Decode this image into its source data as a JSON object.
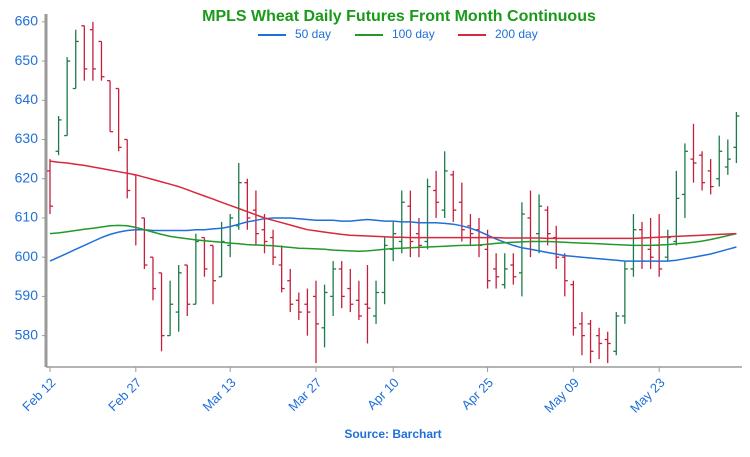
{
  "chart_data": {
    "type": "ohlc",
    "title": "MPLS Wheat Daily Futures Front Month Continuous",
    "source": "Source: Barchart",
    "categories": [
      "Feb 12",
      null,
      null,
      null,
      null,
      null,
      null,
      null,
      null,
      null,
      "Feb 27",
      null,
      null,
      null,
      null,
      null,
      null,
      null,
      null,
      null,
      null,
      "Mar 13",
      null,
      null,
      null,
      null,
      null,
      null,
      null,
      null,
      null,
      "Mar 27",
      null,
      null,
      null,
      null,
      null,
      null,
      null,
      null,
      "Apr 10",
      null,
      null,
      null,
      null,
      null,
      null,
      null,
      null,
      null,
      null,
      "Apr 25",
      null,
      null,
      null,
      null,
      null,
      null,
      null,
      null,
      null,
      "May 09",
      null,
      null,
      null,
      null,
      null,
      null,
      null,
      null,
      null,
      "May 23",
      null,
      null,
      null,
      null,
      null,
      null,
      null,
      null,
      null
    ],
    "open": [
      622,
      627,
      631,
      643,
      659,
      658,
      655,
      645,
      643,
      630,
      621,
      610,
      600,
      596,
      580,
      586,
      598,
      588,
      605,
      603,
      595,
      603,
      608,
      619,
      612,
      607,
      605,
      598,
      594,
      589,
      588,
      590,
      582,
      590,
      597,
      592,
      589,
      588,
      585,
      591,
      602,
      604,
      613,
      606,
      604,
      617,
      612,
      621,
      614,
      608,
      607,
      602,
      597,
      593,
      598,
      596,
      610,
      606,
      612,
      605,
      600,
      593,
      583,
      583,
      580,
      579,
      576,
      585,
      597,
      607,
      602,
      603,
      600,
      604,
      616,
      625,
      626,
      622,
      620,
      623,
      628
    ],
    "high": [
      625,
      636,
      651,
      658,
      659,
      660,
      655,
      645,
      643,
      630,
      621,
      610,
      600,
      596,
      594,
      598,
      598,
      606,
      605,
      603,
      609,
      611,
      624,
      620,
      617,
      611,
      607,
      603,
      597,
      591,
      592,
      594,
      593,
      599,
      599,
      597,
      594,
      598,
      594,
      605,
      609,
      617,
      617,
      610,
      620,
      622,
      627,
      622,
      619,
      611,
      610,
      607,
      601,
      601,
      601,
      614,
      617,
      616,
      613,
      608,
      601,
      594,
      586,
      584,
      582,
      581,
      586,
      599,
      611,
      609,
      610,
      611,
      607,
      622,
      629,
      634,
      627,
      625,
      631,
      630,
      637
    ],
    "low": [
      611,
      626,
      631,
      643,
      645,
      645,
      645,
      632,
      627,
      615,
      603,
      597,
      589,
      576,
      580,
      581,
      585,
      588,
      595,
      588,
      595,
      600,
      607,
      607,
      603,
      601,
      598,
      591,
      586,
      584,
      580,
      573,
      577,
      585,
      587,
      586,
      584,
      578,
      583,
      588,
      599,
      601,
      600,
      600,
      602,
      610,
      610,
      609,
      604,
      603,
      600,
      592,
      592,
      592,
      593,
      590,
      600,
      601,
      603,
      597,
      590,
      580,
      575,
      573,
      574,
      573,
      575,
      583,
      595,
      597,
      597,
      595,
      599,
      603,
      610,
      619,
      617,
      616,
      618,
      621,
      624
    ],
    "close": [
      613,
      635,
      650,
      655,
      648,
      648,
      646,
      632,
      628,
      617,
      607,
      598,
      592,
      580,
      588,
      596,
      588,
      604,
      597,
      594,
      604,
      610,
      619,
      610,
      606,
      604,
      600,
      592,
      588,
      586,
      586,
      583,
      591,
      597,
      590,
      588,
      585,
      587,
      591,
      603,
      606,
      614,
      604,
      603,
      618,
      614,
      622,
      612,
      607,
      606,
      603,
      594,
      595,
      597,
      595,
      611,
      604,
      613,
      606,
      600,
      594,
      582,
      580,
      576,
      578,
      578,
      585,
      597,
      607,
      599,
      600,
      597,
      605,
      615,
      627,
      624,
      619,
      618,
      627,
      625,
      636
    ],
    "up_color": "#1d7a4a",
    "down_color": "#c4203c",
    "series": [
      {
        "name": "50 day",
        "color": "#1f6fd8",
        "values": [
          599,
          600,
          601,
          602,
          603,
          604,
          605,
          605.8,
          606.4,
          606.8,
          607,
          607,
          606.8,
          606.8,
          606.8,
          606.8,
          606.8,
          607,
          607,
          607.2,
          607.4,
          607.8,
          608.4,
          609,
          609.4,
          609.8,
          610,
          610,
          610,
          609.8,
          609.6,
          609.4,
          609.4,
          609.4,
          609.2,
          609.2,
          609.4,
          609.6,
          609.4,
          609.2,
          609.2,
          609,
          609,
          608.8,
          608.8,
          608.8,
          608.6,
          608.4,
          608,
          607.4,
          606.6,
          605.6,
          604.6,
          603.8,
          603,
          602.4,
          602,
          601.6,
          601.2,
          600.8,
          600.4,
          600.2,
          600,
          599.8,
          599.6,
          599.4,
          599.2,
          599,
          599,
          599,
          599,
          599,
          599,
          599.2,
          599.6,
          600,
          600.4,
          600.8,
          601.4,
          602,
          602.6
        ]
      },
      {
        "name": "100 day",
        "color": "#22992a",
        "values": [
          606,
          606.2,
          606.5,
          606.8,
          607.1,
          607.4,
          607.7,
          608,
          608.1,
          608,
          607.6,
          607,
          606.4,
          605.8,
          605.3,
          605,
          604.7,
          604.4,
          604.2,
          604,
          603.8,
          603.6,
          603.4,
          603.2,
          603.1,
          603,
          602.9,
          602.7,
          602.5,
          602.3,
          602.2,
          602.1,
          602,
          601.8,
          601.7,
          601.6,
          601.5,
          601.6,
          601.8,
          602,
          602.2,
          602.3,
          602.4,
          602.5,
          602.6,
          602.7,
          602.8,
          602.9,
          603,
          603,
          603.1,
          603.3,
          603.5,
          603.7,
          603.8,
          603.9,
          604,
          604,
          604,
          603.9,
          603.8,
          603.7,
          603.6,
          603.5,
          603.4,
          603.3,
          603.2,
          603.1,
          603,
          603,
          603,
          603.1,
          603.2,
          603.4,
          603.6,
          603.8,
          604.1,
          604.5,
          605,
          605.5,
          606
        ]
      },
      {
        "name": "200 day",
        "color": "#d8283f",
        "values": [
          624.5,
          624.2,
          624,
          623.7,
          623.4,
          623,
          622.6,
          622.2,
          621.8,
          621.4,
          621,
          620.4,
          619.8,
          619.2,
          618.6,
          618,
          617.2,
          616.4,
          615.6,
          614.8,
          614,
          613.2,
          612.4,
          611.6,
          610.8,
          610,
          609.4,
          608.8,
          608.2,
          607.6,
          607,
          606.7,
          606.4,
          606.1,
          605.8,
          605.6,
          605.5,
          605.4,
          605.3,
          605.2,
          605.1,
          605.1,
          605,
          605,
          605,
          605,
          605,
          605,
          605,
          605,
          605,
          605,
          605,
          604.9,
          604.9,
          604.9,
          604.9,
          604.9,
          604.8,
          604.8,
          604.8,
          604.8,
          604.8,
          604.8,
          604.8,
          604.8,
          604.8,
          604.8,
          604.8,
          604.9,
          605,
          605.1,
          605.2,
          605.3,
          605.4,
          605.5,
          605.6,
          605.7,
          605.8,
          605.9,
          606
        ]
      }
    ],
    "ylim": [
      572,
      662
    ],
    "yticks": [
      580,
      590,
      600,
      610,
      620,
      630,
      640,
      650,
      660
    ],
    "axis_color": "#9a9a9a",
    "label_color": "#1f6fd8",
    "title_color": "#1a9a1a",
    "grid": false
  }
}
